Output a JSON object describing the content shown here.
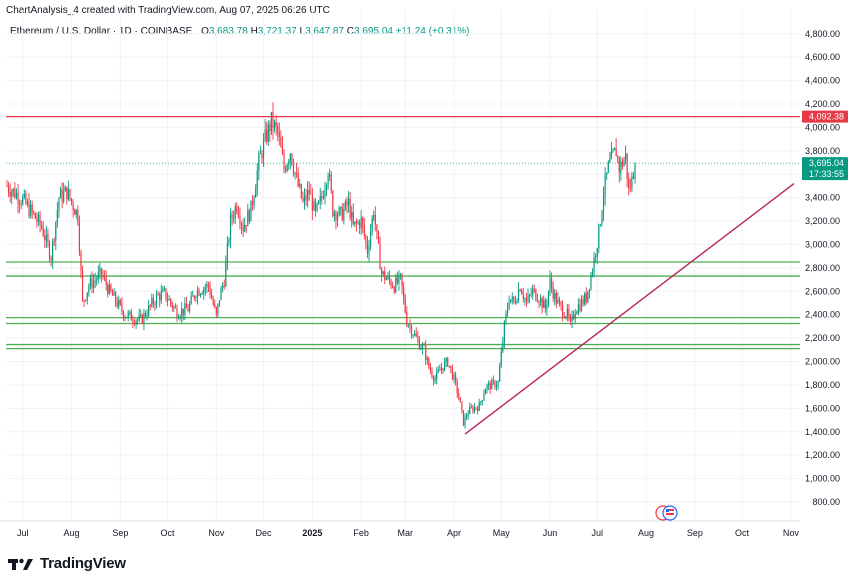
{
  "header": {
    "attribution": "ChartAnalysis_4 created with TradingView.com, Aug 07, 2025 06:26 UTC"
  },
  "legend": {
    "symbol": "Ethereum / U.S. Dollar · 1D · COINBASE",
    "o_label": "O",
    "o_value": "3,683.78",
    "h_label": "H",
    "h_value": "3,721.37",
    "l_label": "L",
    "l_value": "3,647.87",
    "c_label": "C",
    "c_value": "3,695.04",
    "change": "+11.24 (+0.31%)"
  },
  "footer": {
    "brand": "TradingView"
  },
  "colors": {
    "up": "#089981",
    "down": "#f23645",
    "resistance": "#e53945",
    "support": "#4caf50",
    "trendline": "#b8245e",
    "price_badge": "#089981"
  },
  "icons": [
    "tradingview-logo-icon",
    "flag-events-icon"
  ],
  "chart_data": {
    "type": "candlestick",
    "title": "Ethereum / U.S. Dollar · 1D · COINBASE",
    "ylim": [
      700,
      4900
    ],
    "y_ticks": [
      800,
      1000,
      1200,
      1400,
      1600,
      1800,
      2000,
      2200,
      2400,
      2600,
      2800,
      3000,
      3200,
      3400,
      3600,
      3800,
      4000,
      4200,
      4400,
      4600,
      4800
    ],
    "y_tick_labels": [
      "800.00",
      "1,000.00",
      "1,200.00",
      "1,400.00",
      "1,600.00",
      "1,800.00",
      "2,000.00",
      "2,200.00",
      "2,400.00",
      "2,600.00",
      "2,800.00",
      "3,000.00",
      "3,200.00",
      "3,400.00",
      "3,600.00",
      "3,800.00",
      "4,000.00",
      "4,200.00",
      "4,400.00",
      "4,600.00",
      "4,800.00"
    ],
    "x_labels": [
      "Jul",
      "Aug",
      "Sep",
      "Oct",
      "Nov",
      "Dec",
      "2025",
      "Feb",
      "Mar",
      "Apr",
      "May",
      "Jun",
      "Jul",
      "Aug",
      "Sep",
      "Oct",
      "Nov"
    ],
    "x_label_days": [
      10,
      41,
      72,
      102,
      133,
      163,
      194,
      225,
      253,
      284,
      314,
      345,
      375,
      406,
      437,
      467,
      498
    ],
    "x_range_days": [
      0,
      500
    ],
    "price_anchors": [
      [
        0,
        3500
      ],
      [
        10,
        3380
      ],
      [
        22,
        3150
      ],
      [
        28,
        2900
      ],
      [
        33,
        3400
      ],
      [
        38,
        3450
      ],
      [
        45,
        3250
      ],
      [
        48,
        2500
      ],
      [
        52,
        2650
      ],
      [
        60,
        2750
      ],
      [
        65,
        2600
      ],
      [
        75,
        2400
      ],
      [
        85,
        2350
      ],
      [
        95,
        2550
      ],
      [
        100,
        2580
      ],
      [
        108,
        2420
      ],
      [
        115,
        2450
      ],
      [
        120,
        2600
      ],
      [
        128,
        2650
      ],
      [
        133,
        2380
      ],
      [
        135,
        2550
      ],
      [
        138,
        2700
      ],
      [
        142,
        3200
      ],
      [
        146,
        3350
      ],
      [
        150,
        3150
      ],
      [
        155,
        3300
      ],
      [
        160,
        3700
      ],
      [
        164,
        3900
      ],
      [
        168,
        4050
      ],
      [
        172,
        3950
      ],
      [
        176,
        3650
      ],
      [
        180,
        3800
      ],
      [
        184,
        3550
      ],
      [
        188,
        3350
      ],
      [
        192,
        3450
      ],
      [
        196,
        3250
      ],
      [
        200,
        3400
      ],
      [
        204,
        3650
      ],
      [
        207,
        3300
      ],
      [
        212,
        3250
      ],
      [
        217,
        3350
      ],
      [
        220,
        3150
      ],
      [
        225,
        3200
      ],
      [
        229,
        2950
      ],
      [
        233,
        3300
      ],
      [
        235,
        3050
      ],
      [
        238,
        2750
      ],
      [
        242,
        2700
      ],
      [
        246,
        2650
      ],
      [
        250,
        2700
      ],
      [
        254,
        2350
      ],
      [
        258,
        2250
      ],
      [
        262,
        2150
      ],
      [
        265,
        2100
      ],
      [
        268,
        1950
      ],
      [
        272,
        1850
      ],
      [
        276,
        1950
      ],
      [
        280,
        2000
      ],
      [
        284,
        1850
      ],
      [
        287,
        1700
      ],
      [
        290,
        1480
      ],
      [
        293,
        1570
      ],
      [
        296,
        1600
      ],
      [
        300,
        1620
      ],
      [
        304,
        1780
      ],
      [
        308,
        1800
      ],
      [
        312,
        1820
      ],
      [
        316,
        2300
      ],
      [
        319,
        2550
      ],
      [
        322,
        2500
      ],
      [
        326,
        2650
      ],
      [
        330,
        2500
      ],
      [
        334,
        2600
      ],
      [
        338,
        2550
      ],
      [
        342,
        2450
      ],
      [
        345,
        2680
      ],
      [
        348,
        2550
      ],
      [
        352,
        2450
      ],
      [
        356,
        2400
      ],
      [
        358,
        2300
      ],
      [
        361,
        2450
      ],
      [
        365,
        2500
      ],
      [
        368,
        2550
      ],
      [
        372,
        2800
      ],
      [
        376,
        3100
      ],
      [
        379,
        3450
      ],
      [
        382,
        3650
      ],
      [
        385,
        3750
      ],
      [
        387,
        3800
      ],
      [
        389,
        3650
      ],
      [
        391,
        3700
      ],
      [
        393,
        3750
      ],
      [
        395,
        3450
      ],
      [
        397,
        3550
      ],
      [
        399,
        3695
      ]
    ],
    "last_day": 399,
    "close": 3695.04,
    "horizontal_levels": [
      {
        "price": 4092.38,
        "label": "4,092.38",
        "role": "resistance"
      },
      {
        "price": 2850,
        "role": "support"
      },
      {
        "price": 2730,
        "role": "support"
      },
      {
        "price": 2375,
        "role": "support"
      },
      {
        "price": 2325,
        "role": "support"
      },
      {
        "price": 2145,
        "role": "support"
      },
      {
        "price": 2110,
        "role": "support"
      }
    ],
    "trendline": {
      "from": [
        291,
        1380
      ],
      "to": [
        500,
        3520
      ],
      "role": "rising support"
    },
    "current_price_label": "3,695.04",
    "countdown_label": "17:33:55"
  }
}
